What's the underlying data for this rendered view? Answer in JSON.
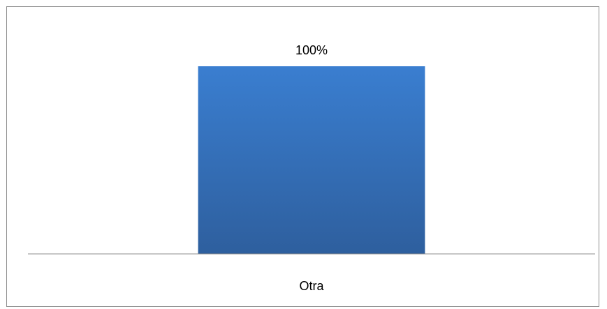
{
  "chart_data": {
    "type": "bar",
    "categories": [
      "Otra"
    ],
    "values": [
      100
    ],
    "data_labels": [
      "100%"
    ],
    "ylim": [
      0,
      100
    ],
    "grid": false,
    "legend": "none",
    "bar_color_top": "#3a7ed0",
    "bar_color_bottom": "#2e5f9e"
  }
}
